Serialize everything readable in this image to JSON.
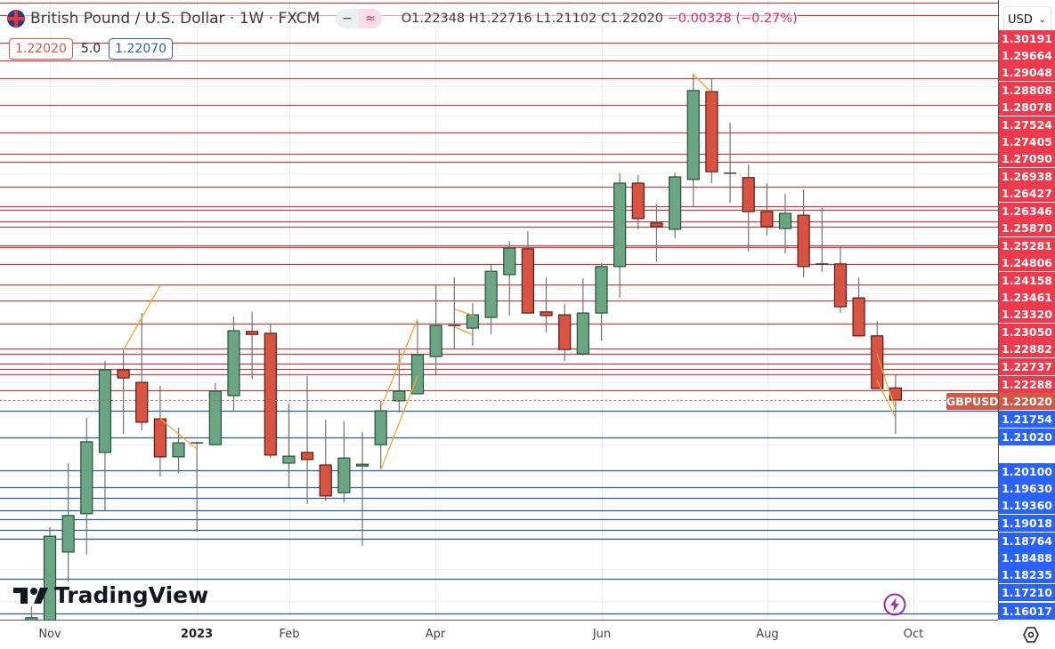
{
  "header": {
    "title": "British Pound / U.S. Dollar · 1W · FXCM",
    "toggle_left": "−",
    "toggle_right": "≈",
    "open": "O1.22348",
    "high": "H1.22716",
    "low": "L1.21102",
    "close": "C1.22020",
    "change": "−0.00328 (−0.27%)",
    "sell_price": "1.22020",
    "spread": "5.0",
    "buy_price": "1.22070"
  },
  "currency_selector": {
    "value": "USD"
  },
  "price_axis": {
    "resistance_labels": [
      "1.30191",
      "1.29664",
      "1.29048",
      "1.28808",
      "1.28078",
      "1.27524",
      "1.27405",
      "1.27090",
      "1.26938",
      "1.26427",
      "1.26346",
      "1.25870",
      "1.25281",
      "1.24806",
      "1.24158",
      "1.23461",
      "1.23320",
      "1.23050",
      "1.22882",
      "1.22737",
      "1.22288"
    ],
    "symbol_label": "GBPUSD",
    "current_price": "1.22020",
    "support_labels": [
      "1.21754",
      "1.21020",
      "1.20100",
      "1.19630",
      "1.19360",
      "1.19018",
      "1.18764",
      "1.18488",
      "1.18235",
      "1.17210",
      "1.16017"
    ]
  },
  "time_axis": [
    "Nov",
    "2023",
    "Feb",
    "Apr",
    "Jun",
    "Aug",
    "Oct"
  ],
  "logo": "TradingView",
  "colors": {
    "up": "#6ba583",
    "down": "#d75442",
    "resistance": "#b2434a",
    "support": "#2f5a8f",
    "trendline": "#f0a830",
    "accent_red": "#ee3a4c",
    "accent_blue": "#2962ff"
  },
  "chart_data": {
    "type": "candlestick",
    "title": "British Pound / U.S. Dollar · 1W · FXCM",
    "interval": "1W",
    "x_tick_labels": [
      "Nov",
      "2023",
      "Feb",
      "Apr",
      "Jun",
      "Aug",
      "Oct"
    ],
    "ylim": [
      1.16,
      1.31
    ],
    "grid": true,
    "fields": [
      "open",
      "high",
      "low",
      "close"
    ],
    "ohlc": [
      [
        1.1605,
        1.1643,
        1.1598,
        1.1612
      ],
      [
        1.1551,
        1.1857,
        1.1503,
        1.1833
      ],
      [
        1.179,
        1.2031,
        1.171,
        1.1889
      ],
      [
        1.1894,
        1.2154,
        1.1783,
        1.2089
      ],
      [
        1.206,
        1.2308,
        1.1903,
        1.2284
      ],
      [
        1.2284,
        1.2339,
        1.211,
        1.2262
      ],
      [
        1.225,
        1.2438,
        1.212,
        1.2142
      ],
      [
        1.2151,
        1.2241,
        1.1995,
        1.2048
      ],
      [
        1.2048,
        1.2127,
        1.2004,
        1.2086
      ],
      [
        1.2086,
        1.2089,
        1.1845,
        1.2086
      ],
      [
        1.2081,
        1.2248,
        1.2081,
        1.2226
      ],
      [
        1.2214,
        1.2429,
        1.2171,
        1.239
      ],
      [
        1.2388,
        1.2441,
        1.226,
        1.238
      ],
      [
        1.2383,
        1.2407,
        1.2045,
        1.2053
      ],
      [
        1.2031,
        1.2192,
        1.1966,
        1.205
      ],
      [
        1.206,
        1.2267,
        1.192,
        1.2041
      ],
      [
        1.2026,
        1.2149,
        1.193,
        1.1942
      ],
      [
        1.1951,
        1.2144,
        1.1925,
        1.2045
      ],
      [
        1.2024,
        1.2115,
        1.1807,
        1.2028
      ],
      [
        1.2081,
        1.22,
        1.2014,
        1.2173
      ],
      [
        1.22,
        1.2339,
        1.2168,
        1.2226
      ],
      [
        1.2219,
        1.2416,
        1.2219,
        1.2325
      ],
      [
        1.232,
        1.2513,
        1.2272,
        1.2404
      ],
      [
        1.2404,
        1.2535,
        1.2342,
        1.2404
      ],
      [
        1.2397,
        1.2465,
        1.2349,
        1.2433
      ],
      [
        1.2426,
        1.2568,
        1.238,
        1.2551
      ],
      [
        1.2542,
        1.2633,
        1.2431,
        1.2614
      ],
      [
        1.2612,
        1.266,
        1.2438,
        1.2438
      ],
      [
        1.2441,
        1.2535,
        1.2385,
        1.2431
      ],
      [
        1.2433,
        1.2462,
        1.2308,
        1.2339
      ],
      [
        1.2327,
        1.2532,
        1.2323,
        1.2438
      ],
      [
        1.2438,
        1.2573,
        1.2363,
        1.2564
      ],
      [
        1.2564,
        1.2817,
        1.2479,
        1.279
      ],
      [
        1.279,
        1.2812,
        1.2665,
        1.2694
      ],
      [
        1.2682,
        1.2735,
        1.2576,
        1.2672
      ],
      [
        1.2665,
        1.2819,
        1.2641,
        1.2807
      ],
      [
        1.28,
        1.3086,
        1.2727,
        1.3041
      ],
      [
        1.3038,
        1.3072,
        1.279,
        1.2821
      ],
      [
        1.2817,
        1.2954,
        1.2737,
        1.2817
      ],
      [
        1.2805,
        1.2841,
        1.2604,
        1.2713
      ],
      [
        1.2713,
        1.279,
        1.2648,
        1.2672
      ],
      [
        1.2667,
        1.2761,
        1.26,
        1.2708
      ],
      [
        1.2703,
        1.2773,
        1.2535,
        1.2564
      ],
      [
        1.2571,
        1.2723,
        1.2549,
        1.2571
      ],
      [
        1.2571,
        1.2621,
        1.2438,
        1.2455
      ],
      [
        1.2479,
        1.2535,
        1.2376,
        1.2376
      ],
      [
        1.2376,
        1.2416,
        1.2233,
        1.2233
      ],
      [
        1.22348,
        1.22716,
        1.21102,
        1.2202
      ]
    ],
    "last_price": 1.2202
  }
}
